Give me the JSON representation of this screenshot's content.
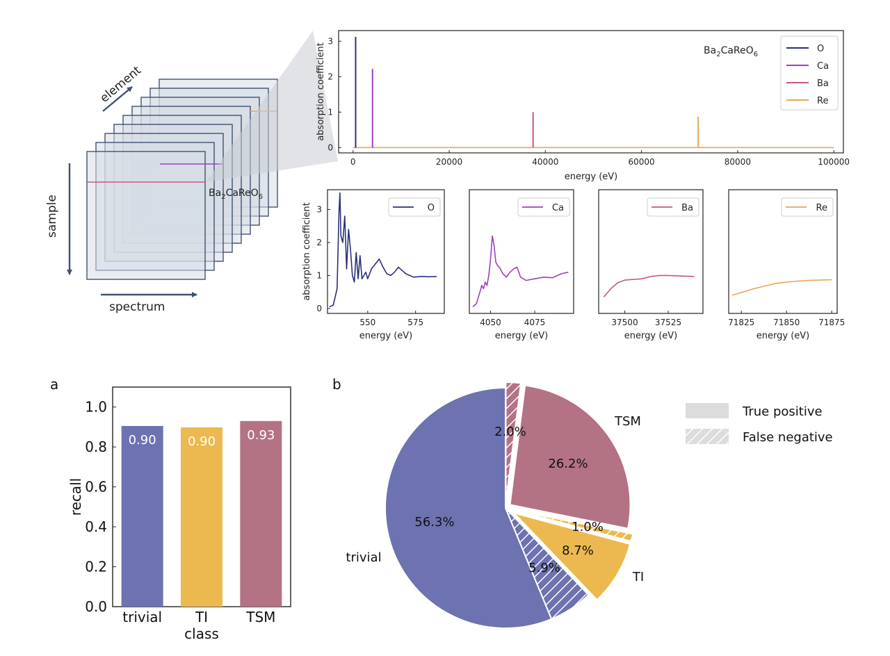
{
  "colors": {
    "O": "#2a2f7a",
    "Ca": "#9b3fbf",
    "Ba": "#c5597a",
    "Re": "#e8a55a",
    "trivial": "#6d72b0",
    "TI": "#ecb950",
    "TSM": "#b47285",
    "cube_stroke": "#3f5270",
    "cube_fill": "#d7dde6"
  },
  "schematic": {
    "axis_element": "element",
    "axis_sample": "sample",
    "axis_spectrum": "spectrum",
    "compound_base": "Ba",
    "compound_sub1": "2",
    "compound_mid": "CaReO",
    "compound_sub2": "6"
  },
  "chart_data": [
    {
      "id": "full-spectrum",
      "type": "line",
      "title": "Ba2CaReO6",
      "xlabel": "energy (eV)",
      "ylabel": "absorption coefficient",
      "xlim": [
        -3000,
        102000
      ],
      "ylim": [
        -0.15,
        3.3
      ],
      "xticks": [
        0,
        20000,
        40000,
        60000,
        80000,
        100000
      ],
      "yticks": [
        0,
        1,
        2,
        3
      ],
      "legend": [
        "O",
        "Ca",
        "Ba",
        "Re"
      ],
      "peaks": [
        {
          "name": "O",
          "x": 540,
          "y": 3.12
        },
        {
          "name": "Ca",
          "x": 4050,
          "y": 2.22
        },
        {
          "name": "Ba",
          "x": 37450,
          "y": 1.0
        },
        {
          "name": "Re",
          "x": 71800,
          "y": 0.87
        }
      ]
    },
    {
      "id": "edge-O",
      "type": "line",
      "xlabel": "energy (eV)",
      "ylabel": "absorption coefficient",
      "xlim": [
        529,
        590
      ],
      "ylim": [
        -0.15,
        3.6
      ],
      "xticks": [
        550,
        575
      ],
      "yticks": [
        0,
        1,
        2,
        3
      ],
      "legend": [
        "O"
      ],
      "x": [
        530,
        532,
        534,
        535,
        535.5,
        536,
        537,
        538,
        539,
        540,
        541,
        542,
        543,
        544,
        545,
        546,
        547,
        548,
        549,
        550,
        552,
        554,
        556,
        558,
        560,
        562,
        564,
        566,
        568,
        570,
        574,
        578,
        582,
        586
      ],
      "y": [
        0.05,
        0.1,
        0.6,
        2.9,
        3.5,
        2.2,
        2.0,
        2.8,
        1.2,
        2.4,
        1.8,
        1.0,
        0.8,
        1.7,
        0.9,
        1.6,
        0.9,
        1.0,
        1.1,
        0.9,
        1.2,
        1.35,
        1.5,
        1.25,
        1.05,
        1.0,
        1.1,
        1.25,
        1.15,
        1.05,
        0.95,
        0.97,
        0.96,
        0.97
      ]
    },
    {
      "id": "edge-Ca",
      "type": "line",
      "xlabel": "energy (eV)",
      "xlim": [
        4038,
        4097
      ],
      "ylim": [
        -0.15,
        3.6
      ],
      "xticks": [
        4050,
        4075
      ],
      "legend": [
        "Ca"
      ],
      "x": [
        4040,
        4042,
        4044,
        4045,
        4046,
        4047,
        4048,
        4049,
        4050,
        4051,
        4052,
        4053,
        4054,
        4055,
        4057,
        4059,
        4061,
        4063,
        4065,
        4067,
        4070,
        4075,
        4080,
        4085,
        4090,
        4094
      ],
      "y": [
        0.05,
        0.15,
        0.5,
        0.7,
        0.6,
        0.8,
        0.7,
        1.0,
        1.5,
        2.2,
        1.9,
        1.4,
        1.3,
        1.25,
        1.05,
        0.95,
        1.1,
        1.2,
        1.25,
        0.95,
        0.85,
        0.9,
        0.95,
        0.93,
        1.05,
        1.1
      ]
    },
    {
      "id": "edge-Ba",
      "type": "line",
      "xlabel": "energy (eV)",
      "xlim": [
        37485,
        37545
      ],
      "ylim": [
        -0.15,
        3.6
      ],
      "xticks": [
        37500,
        37525
      ],
      "legend": [
        "Ba"
      ],
      "x": [
        37488,
        37492,
        37496,
        37500,
        37505,
        37510,
        37515,
        37520,
        37525,
        37530,
        37535,
        37540
      ],
      "y": [
        0.35,
        0.6,
        0.78,
        0.86,
        0.88,
        0.9,
        0.97,
        1.0,
        1.0,
        0.99,
        0.98,
        0.97
      ]
    },
    {
      "id": "edge-Re",
      "type": "line",
      "xlabel": "energy (eV)",
      "xlim": [
        71818,
        71878
      ],
      "ylim": [
        -0.15,
        3.6
      ],
      "xticks": [
        71825,
        71850,
        71875
      ],
      "legend": [
        "Re"
      ],
      "x": [
        71820,
        71826,
        71832,
        71838,
        71844,
        71850,
        71856,
        71862,
        71868,
        71875
      ],
      "y": [
        0.4,
        0.5,
        0.6,
        0.68,
        0.76,
        0.8,
        0.83,
        0.85,
        0.86,
        0.87
      ]
    },
    {
      "id": "recall-bar",
      "type": "bar",
      "panel_label": "a",
      "xlabel": "class",
      "ylabel": "recall",
      "ylim": [
        0,
        1.1
      ],
      "yticks": [
        "0.0",
        "0.2",
        "0.4",
        "0.6",
        "0.8",
        "1.0"
      ],
      "categories": [
        "trivial",
        "TI",
        "TSM"
      ],
      "values": [
        0.905,
        0.898,
        0.93
      ],
      "labels": [
        "0.90",
        "0.90",
        "0.93"
      ]
    },
    {
      "id": "class-pie",
      "type": "pie",
      "panel_label": "b",
      "legend": [
        "True positive",
        "False negative"
      ],
      "slices": [
        {
          "class": "TSM",
          "kind": "False negative",
          "value": 2.0,
          "label": "2.0%"
        },
        {
          "class": "TSM",
          "kind": "True positive",
          "value": 26.2,
          "label": "26.2%"
        },
        {
          "class": "TI",
          "kind": "False negative",
          "value": 1.0,
          "label": "1.0%"
        },
        {
          "class": "TI",
          "kind": "True positive",
          "value": 8.7,
          "label": "8.7%"
        },
        {
          "class": "trivial",
          "kind": "False negative",
          "value": 5.9,
          "label": "5.9%"
        },
        {
          "class": "trivial",
          "kind": "True positive",
          "value": 56.3,
          "label": "56.3%"
        }
      ],
      "class_labels": [
        "TSM",
        "TI",
        "trivial"
      ]
    }
  ]
}
